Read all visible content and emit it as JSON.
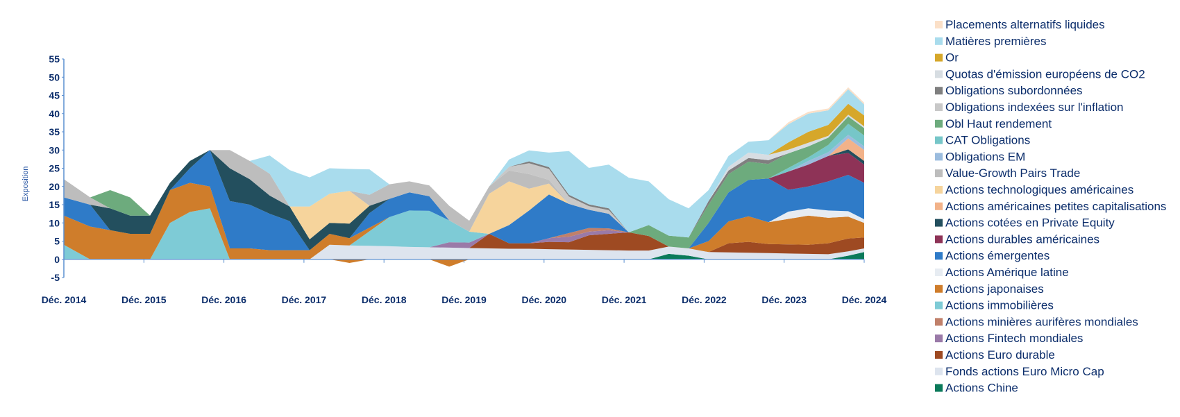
{
  "chart_data": {
    "type": "area",
    "title": "",
    "xlabel": "",
    "ylabel": "Exposition",
    "ylim": [
      -5,
      55
    ],
    "yticks": [
      -5,
      0,
      5,
      10,
      15,
      20,
      25,
      30,
      35,
      40,
      45,
      50,
      55
    ],
    "x_ticks": [
      "Déc. 2014",
      "Déc. 2015",
      "Déc. 2016",
      "Déc. 2017",
      "Déc. 2018",
      "Déc. 2019",
      "Déc. 2020",
      "Déc. 2021",
      "Déc. 2022",
      "Déc. 2023",
      "Déc. 2024"
    ],
    "x": [
      2014.92,
      2015.25,
      2015.5,
      2015.75,
      2016.0,
      2016.25,
      2016.5,
      2016.75,
      2017.0,
      2017.25,
      2017.5,
      2017.75,
      2018.0,
      2018.25,
      2018.5,
      2018.75,
      2019.0,
      2019.25,
      2019.5,
      2019.75,
      2020.0,
      2020.25,
      2020.5,
      2020.75,
      2021.0,
      2021.25,
      2021.5,
      2021.75,
      2022.0,
      2022.25,
      2022.5,
      2022.75,
      2023.0,
      2023.25,
      2023.5,
      2023.75,
      2024.0,
      2024.25,
      2024.5,
      2024.75,
      2024.95
    ],
    "legend_position": "right",
    "grid": false,
    "series": [
      {
        "name": "Actions Chine",
        "color": "#0a7a5a",
        "values": [
          0,
          0,
          0,
          0,
          0,
          0,
          0,
          0,
          0,
          0,
          0,
          0,
          0,
          0,
          0,
          0,
          0,
          0,
          0,
          0,
          0,
          0,
          0,
          0,
          0,
          0,
          0,
          0,
          0,
          0,
          1.5,
          1,
          0,
          0,
          0,
          0,
          0,
          0,
          0,
          1,
          2
        ]
      },
      {
        "name": "Fonds actions Euro Micro Cap",
        "color": "#dde4ee",
        "values": [
          0,
          0,
          0,
          0,
          0,
          0,
          0,
          0,
          0,
          0,
          0,
          0,
          0,
          4,
          3.8,
          3.7,
          3.6,
          3.4,
          3.3,
          3.2,
          3.1,
          3.0,
          2.9,
          2.9,
          2.8,
          2.7,
          2.6,
          2.5,
          2.4,
          2.4,
          2,
          2,
          2,
          1.9,
          1.8,
          1.7,
          1.6,
          1.5,
          1.4,
          1.2,
          1.0
        ]
      },
      {
        "name": "Actions Euro durable",
        "color": "#9e4a22",
        "values": [
          0,
          0,
          0,
          0,
          0,
          0,
          0,
          0,
          0,
          0,
          0,
          0,
          0,
          0,
          0,
          0,
          0,
          0,
          0,
          0,
          0,
          4,
          1.5,
          1.5,
          2,
          2,
          4,
          4.5,
          5,
          4,
          0,
          0,
          0,
          2.5,
          3,
          2.5,
          2.5,
          2.5,
          3,
          3.5,
          3
        ]
      },
      {
        "name": "Actions Fintech mondiales",
        "color": "#9a7aa8",
        "values": [
          0,
          0,
          0,
          0,
          0,
          0,
          0,
          0,
          0,
          0,
          0,
          0,
          0,
          0,
          0,
          0,
          0,
          0,
          0,
          1.5,
          1.5,
          0,
          0,
          0,
          1,
          1.5,
          1,
          1,
          0,
          0,
          0,
          0,
          0,
          0,
          0,
          0,
          0,
          0,
          0,
          0,
          0
        ]
      },
      {
        "name": "Actions minières aurifères mondiales",
        "color": "#c0806a",
        "values": [
          0,
          0,
          0,
          0,
          0,
          0,
          0,
          0,
          0,
          0,
          0,
          0,
          0,
          0,
          0,
          0,
          0,
          0,
          0,
          0,
          0,
          0,
          0,
          0,
          0,
          1,
          1,
          0.5,
          0,
          0,
          0,
          0,
          0,
          0,
          0,
          0,
          0,
          0,
          0,
          0,
          0
        ]
      },
      {
        "name": "Actions immobilières",
        "color": "#7ecbd6",
        "values": [
          4,
          0,
          0,
          0,
          0,
          10,
          13,
          14,
          0,
          0,
          0,
          0,
          0,
          0,
          0,
          4,
          8,
          10,
          10,
          6,
          3,
          0,
          0,
          0,
          0,
          0,
          0,
          0,
          0,
          0,
          0,
          0,
          0,
          0,
          0,
          0,
          0,
          0,
          0,
          0,
          0
        ]
      },
      {
        "name": "Actions japonaises",
        "color": "#cf7d2b",
        "values": [
          8,
          9,
          8,
          7,
          7,
          9,
          8,
          6,
          3,
          3,
          2.5,
          2.5,
          2.5,
          3,
          2,
          1,
          0,
          0,
          0,
          0,
          0,
          0,
          0,
          0,
          0,
          0,
          0,
          0,
          0,
          0,
          0,
          0,
          3,
          6,
          7,
          6,
          7,
          8,
          7,
          6,
          4
        ]
      },
      {
        "name": "Actions Amérique latine",
        "color": "#e7ecf2",
        "values": [
          0,
          0,
          0,
          0,
          0,
          0,
          0,
          0,
          0,
          0,
          0,
          0,
          0,
          0,
          0,
          0,
          0,
          0,
          0,
          0,
          0,
          0,
          0,
          0,
          0,
          0,
          0,
          0,
          0,
          0,
          0,
          0,
          0,
          0,
          0,
          0,
          2,
          2,
          2,
          1.5,
          1
        ]
      },
      {
        "name": "Actions émergentes",
        "color": "#2f7bc8",
        "values": [
          5,
          6,
          0,
          0,
          0,
          0,
          4,
          10,
          13,
          12,
          10,
          8,
          0,
          0,
          0,
          4,
          5,
          5,
          4,
          0,
          0,
          0,
          5,
          9,
          12,
          8,
          5,
          4,
          0,
          0,
          0,
          0,
          5,
          8,
          10,
          12,
          6,
          6,
          8,
          10,
          10
        ]
      },
      {
        "name": "Actions durables américaines",
        "color": "#8e3357",
        "values": [
          0,
          0,
          0,
          0,
          0,
          0,
          0,
          0,
          0,
          0,
          0,
          0,
          0,
          0,
          0,
          0,
          0,
          0,
          0,
          0,
          0,
          0,
          0,
          0,
          0,
          0,
          0,
          0,
          0,
          0,
          0,
          0,
          0,
          0,
          0,
          0,
          5,
          6,
          7,
          6,
          5
        ]
      },
      {
        "name": "Actions cotées en Private Equity",
        "color": "#234f5e",
        "values": [
          0,
          0,
          6,
          5,
          5,
          2,
          2,
          0,
          9,
          7,
          5,
          4,
          3,
          3,
          4,
          2,
          0,
          0,
          0,
          0,
          0,
          0,
          0,
          0,
          0,
          0,
          0,
          0,
          0,
          0,
          0,
          0,
          0,
          0,
          0,
          0,
          0,
          0,
          0,
          1,
          1
        ]
      },
      {
        "name": "Actions américaines petites capitalisations",
        "color": "#f2b289",
        "values": [
          0,
          0,
          0,
          0,
          0,
          0,
          0,
          0,
          0,
          0,
          0,
          0,
          0,
          0,
          0,
          0,
          0,
          0,
          0,
          0,
          0,
          0,
          0,
          0,
          0,
          0,
          0,
          0,
          0,
          0,
          0,
          0,
          0,
          0,
          0,
          0,
          0,
          0,
          0,
          3,
          3
        ]
      },
      {
        "name": "Actions technologiques américaines",
        "color": "#f6d49c",
        "values": [
          0,
          0,
          0,
          0,
          0,
          0,
          0,
          0,
          0,
          0,
          0,
          0,
          9,
          8,
          9,
          0,
          0,
          0,
          0,
          0,
          0,
          11,
          12,
          6,
          3,
          0,
          0,
          0,
          0,
          0,
          0,
          0,
          0,
          0,
          0,
          0,
          0,
          0,
          0,
          0,
          0
        ]
      },
      {
        "name": "Value-Growth Pairs Trade",
        "color": "#bdbdbd",
        "values": [
          5,
          2,
          0,
          0,
          0,
          0,
          0,
          0,
          5,
          5,
          6,
          0,
          0,
          0,
          0,
          3,
          4,
          3,
          3,
          4,
          3,
          2,
          3,
          4,
          1,
          0,
          0,
          0,
          0,
          0,
          0,
          0,
          0,
          0,
          0,
          0,
          0,
          0,
          0,
          0,
          0
        ]
      },
      {
        "name": "Obligations EM",
        "color": "#9bbcde",
        "values": [
          0,
          0,
          0,
          0,
          0,
          0,
          0,
          0,
          0,
          0,
          0,
          0,
          0,
          0,
          0,
          0,
          0,
          0,
          0,
          0,
          0,
          0,
          0,
          0,
          0,
          0,
          0,
          0,
          0,
          0,
          0,
          0,
          0,
          0,
          0,
          0,
          0,
          1,
          1,
          1,
          1
        ]
      },
      {
        "name": "CAT Obligations",
        "color": "#76c6c8",
        "values": [
          0,
          0,
          0,
          0,
          0,
          0,
          0,
          0,
          0,
          0,
          0,
          0,
          0,
          0,
          0,
          0,
          0,
          0,
          0,
          0,
          0,
          0,
          0,
          0,
          0,
          0,
          0,
          0,
          0,
          0,
          0,
          0,
          0,
          0,
          0,
          0,
          1,
          1,
          2,
          3,
          3
        ]
      },
      {
        "name": "Obl Haut rendement",
        "color": "#6dab7d",
        "values": [
          0,
          0,
          5,
          5,
          0,
          0,
          0,
          0,
          0,
          0,
          0,
          0,
          0,
          0,
          0,
          0,
          0,
          0,
          0,
          0,
          0,
          0,
          0,
          0,
          0,
          0,
          0,
          0,
          0,
          3,
          3,
          3,
          5,
          5,
          5,
          4,
          4,
          3,
          2,
          2,
          2
        ]
      },
      {
        "name": "Obligations indexées sur l'inflation",
        "color": "#c8c8c8",
        "values": [
          0,
          0,
          0,
          0,
          0,
          0,
          0,
          0,
          0,
          0,
          0,
          0,
          0,
          0,
          0,
          0,
          0,
          0,
          0,
          0,
          0,
          0,
          1,
          3,
          3,
          2,
          1,
          1,
          0,
          0,
          0,
          0,
          0,
          0,
          0,
          0,
          0,
          0,
          0,
          0,
          0
        ]
      },
      {
        "name": "Obligations subordonnées",
        "color": "#7f7f7f",
        "values": [
          0,
          0,
          0,
          0,
          0,
          0,
          0,
          0,
          0,
          0,
          0,
          0,
          0,
          0,
          0,
          0,
          0,
          0,
          0,
          0,
          0,
          0,
          0,
          0.5,
          0.5,
          0.5,
          0.5,
          0.5,
          0,
          0,
          0,
          0,
          1,
          1,
          1,
          1,
          0,
          0,
          0,
          0,
          0
        ]
      },
      {
        "name": "Quotas d'émission européens de CO2",
        "color": "#d7dde2",
        "values": [
          0,
          0,
          0,
          0,
          0,
          0,
          0,
          0,
          0,
          0,
          0,
          0,
          0,
          0,
          0,
          0,
          0,
          0,
          0,
          0,
          0,
          0,
          0,
          0,
          0,
          0,
          0,
          0,
          0,
          0,
          0,
          0,
          0,
          1,
          1.5,
          1.5,
          1,
          1,
          0.5,
          0.5,
          0.5
        ]
      },
      {
        "name": "Or",
        "color": "#d6a72a",
        "values": [
          0,
          0,
          0,
          0,
          0,
          0,
          0,
          0,
          0,
          0,
          0,
          0,
          0,
          0,
          0,
          0,
          0,
          0,
          0,
          0,
          0,
          0,
          0,
          0,
          0,
          0,
          0,
          0,
          0,
          0,
          0,
          0,
          0,
          0,
          0,
          0,
          2,
          3,
          3,
          3,
          3
        ]
      },
      {
        "name": "Matières premières",
        "color": "#a9dced",
        "values": [
          0,
          0,
          0,
          0,
          0,
          0,
          0,
          0,
          0,
          0,
          5,
          10,
          8,
          7,
          6,
          7,
          0,
          0,
          0,
          0,
          0,
          0,
          2,
          3,
          4,
          12,
          10,
          12,
          15,
          12,
          10,
          8,
          3,
          3,
          3,
          4,
          5,
          5,
          4,
          4,
          3
        ]
      },
      {
        "name": "Placements alternatifs liquides",
        "color": "#fbe0c8",
        "values": [
          0,
          0,
          0,
          0,
          0,
          0,
          0,
          0,
          0,
          0,
          0,
          0,
          0,
          0,
          0,
          0,
          0,
          0,
          0,
          0,
          0,
          0,
          0,
          0,
          0,
          0,
          0,
          0,
          0,
          0,
          0,
          0,
          0,
          0,
          0,
          0,
          0.5,
          0.5,
          0.5,
          0.5,
          0.5
        ]
      }
    ],
    "negative_series": [
      {
        "name": "Actions japonaises",
        "color": "#cf7d2b",
        "values": [
          0,
          0,
          0,
          0,
          0,
          0,
          0,
          0,
          0,
          0,
          0,
          0,
          0,
          0,
          -1,
          0,
          0,
          0,
          0,
          -2,
          0,
          0,
          0,
          0,
          0,
          0,
          0,
          0,
          0,
          0,
          0,
          0,
          0,
          0,
          0,
          0,
          0,
          0,
          0,
          0,
          0
        ]
      }
    ]
  }
}
